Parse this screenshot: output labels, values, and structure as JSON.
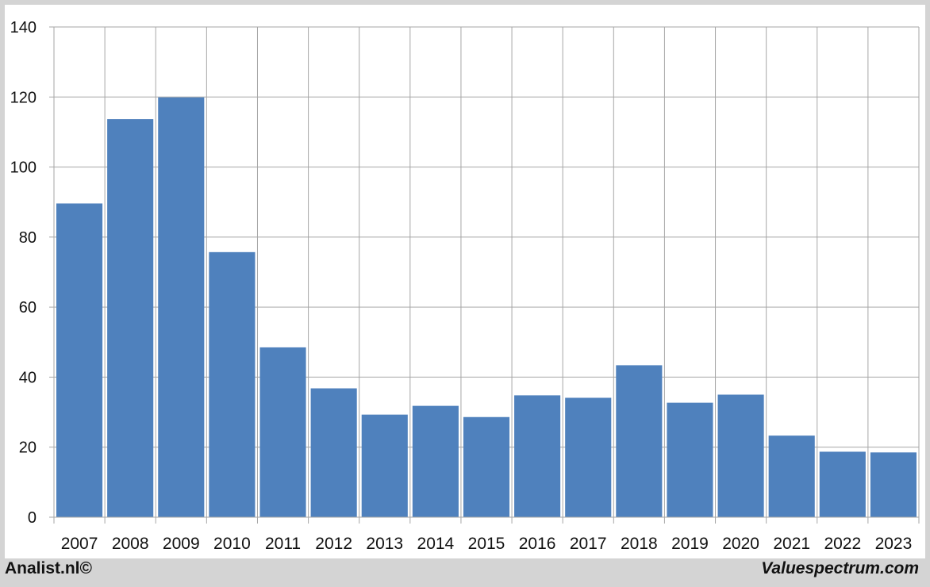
{
  "chart_data": {
    "type": "bar",
    "title": "",
    "xlabel": "",
    "ylabel": "",
    "categories": [
      "2007",
      "2008",
      "2009",
      "2010",
      "2011",
      "2012",
      "2013",
      "2014",
      "2015",
      "2016",
      "2017",
      "2018",
      "2019",
      "2020",
      "2021",
      "2022",
      "2023"
    ],
    "values": [
      89.6,
      113.7,
      119.9,
      75.7,
      48.5,
      36.8,
      29.3,
      31.8,
      28.6,
      34.8,
      34.1,
      43.4,
      32.7,
      35.0,
      23.3,
      18.7,
      18.5
    ],
    "yticks": [
      "0",
      "20",
      "40",
      "60",
      "80",
      "100",
      "120",
      "140"
    ],
    "ylim": [
      0,
      140
    ],
    "grid": true,
    "legend": "none",
    "colors": {
      "bar": "#4f81bd",
      "grid": "#a6a6a6",
      "background": "#ffffff",
      "frame": "#d4d4d4"
    }
  },
  "footer": {
    "left": "Analist.nl©",
    "right": "Valuespectrum.com"
  }
}
